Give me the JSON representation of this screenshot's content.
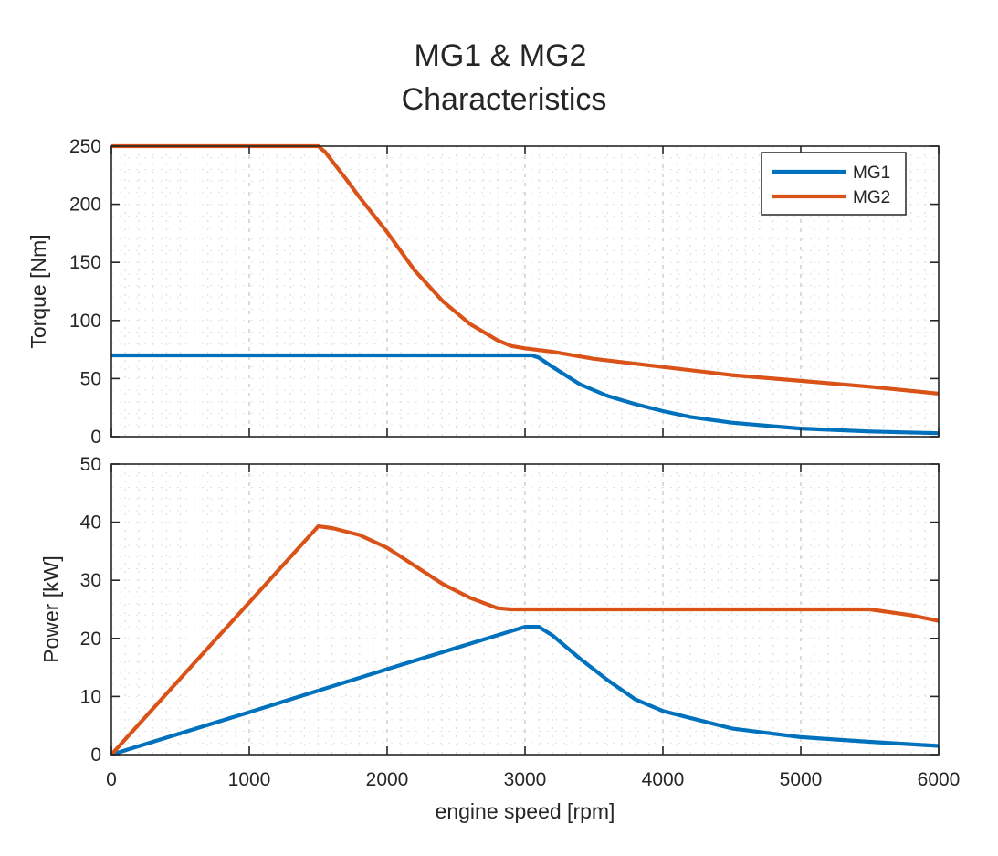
{
  "chart_data": [
    {
      "type": "line",
      "title": [
        "MG1 & MG2",
        "Characteristics"
      ],
      "xlabel": "",
      "ylabel": "Torque [Nm]",
      "xlim": [
        0,
        6000
      ],
      "ylim": [
        0,
        250
      ],
      "xticks": [
        0,
        1000,
        2000,
        3000,
        4000,
        5000,
        6000
      ],
      "xtick_labels": [],
      "yticks": [
        0,
        50,
        100,
        150,
        200,
        250
      ],
      "ytick_labels": [
        "0",
        "50",
        "100",
        "150",
        "200",
        "250"
      ],
      "grid": true,
      "legend": {
        "position": "top-right",
        "entries": [
          "MG1",
          "MG2"
        ]
      },
      "series": [
        {
          "name": "MG1",
          "color": "#0072BD",
          "x": [
            0,
            3000,
            3050,
            3100,
            3200,
            3400,
            3600,
            3800,
            4000,
            4200,
            4500,
            4800,
            5000,
            5500,
            6000
          ],
          "y": [
            70,
            70,
            70,
            68,
            60,
            45,
            35,
            28,
            22,
            17,
            12,
            9,
            7,
            4.5,
            3
          ]
        },
        {
          "name": "MG2",
          "color": "#D95319",
          "x": [
            0,
            1500,
            1550,
            1700,
            1800,
            2000,
            2200,
            2400,
            2600,
            2800,
            2900,
            3000,
            3200,
            3500,
            4000,
            4500,
            5000,
            5500,
            6000
          ],
          "y": [
            250,
            250,
            245,
            222,
            206,
            176,
            143,
            117,
            97,
            83,
            78,
            76,
            73,
            67,
            60,
            53,
            48,
            43,
            37
          ]
        }
      ]
    },
    {
      "type": "line",
      "xlabel": "engine speed [rpm]",
      "ylabel": "Power [kW]",
      "xlim": [
        0,
        6000
      ],
      "ylim": [
        0,
        50
      ],
      "xticks": [
        0,
        1000,
        2000,
        3000,
        4000,
        5000,
        6000
      ],
      "xtick_labels": [
        "0",
        "1000",
        "2000",
        "3000",
        "4000",
        "5000",
        "6000"
      ],
      "yticks": [
        0,
        10,
        20,
        30,
        40,
        50
      ],
      "ytick_labels": [
        "0",
        "10",
        "20",
        "30",
        "40",
        "50"
      ],
      "grid": true,
      "series": [
        {
          "name": "MG1",
          "color": "#0072BD",
          "x": [
            0,
            1000,
            2000,
            3000,
            3100,
            3200,
            3400,
            3600,
            3800,
            4000,
            4500,
            5000,
            5500,
            6000
          ],
          "y": [
            0,
            7.3,
            14.7,
            22,
            22,
            20.5,
            16.5,
            12.8,
            9.5,
            7.5,
            4.5,
            3,
            2.2,
            1.5
          ]
        },
        {
          "name": "MG2",
          "color": "#D95319",
          "x": [
            0,
            1500,
            1600,
            1800,
            2000,
            2200,
            2400,
            2600,
            2800,
            2900,
            3000,
            4000,
            5000,
            5500,
            5800,
            6000
          ],
          "y": [
            0,
            39.3,
            39,
            37.8,
            35.6,
            32.5,
            29.4,
            27,
            25.2,
            25,
            25,
            25,
            25,
            25,
            24,
            23
          ]
        }
      ]
    }
  ]
}
